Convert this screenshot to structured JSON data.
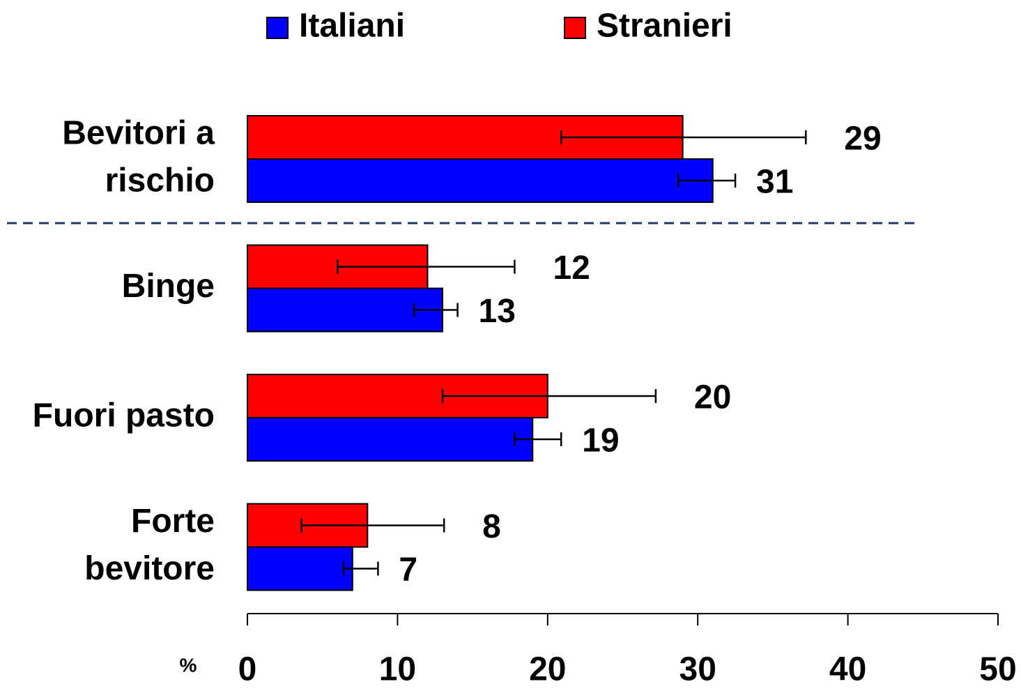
{
  "chart_data": {
    "type": "bar",
    "orientation": "horizontal",
    "categories": [
      [
        "Bevitori a",
        "rischio"
      ],
      [
        "Binge"
      ],
      [
        "Fuori pasto"
      ],
      [
        "Forte",
        "bevitore"
      ]
    ],
    "series": [
      {
        "name": "Stranieri",
        "color": "#ff0000",
        "values": [
          29,
          12,
          20,
          8
        ],
        "ci": [
          [
            20.9,
            37.2
          ],
          [
            6.0,
            17.8
          ],
          [
            13.0,
            27.2
          ],
          [
            3.6,
            13.1
          ]
        ]
      },
      {
        "name": "Italiani",
        "color": "#0000ff",
        "values": [
          31,
          13,
          19,
          7
        ],
        "ci": [
          [
            28.7,
            32.5
          ],
          [
            11.1,
            14.0
          ],
          [
            17.8,
            20.9
          ],
          [
            6.4,
            8.7
          ]
        ]
      }
    ],
    "legend_order": [
      1,
      0
    ],
    "x_label": "%",
    "xlim": [
      0,
      50
    ],
    "xticks": [
      0,
      10,
      20,
      30,
      40,
      50
    ]
  }
}
